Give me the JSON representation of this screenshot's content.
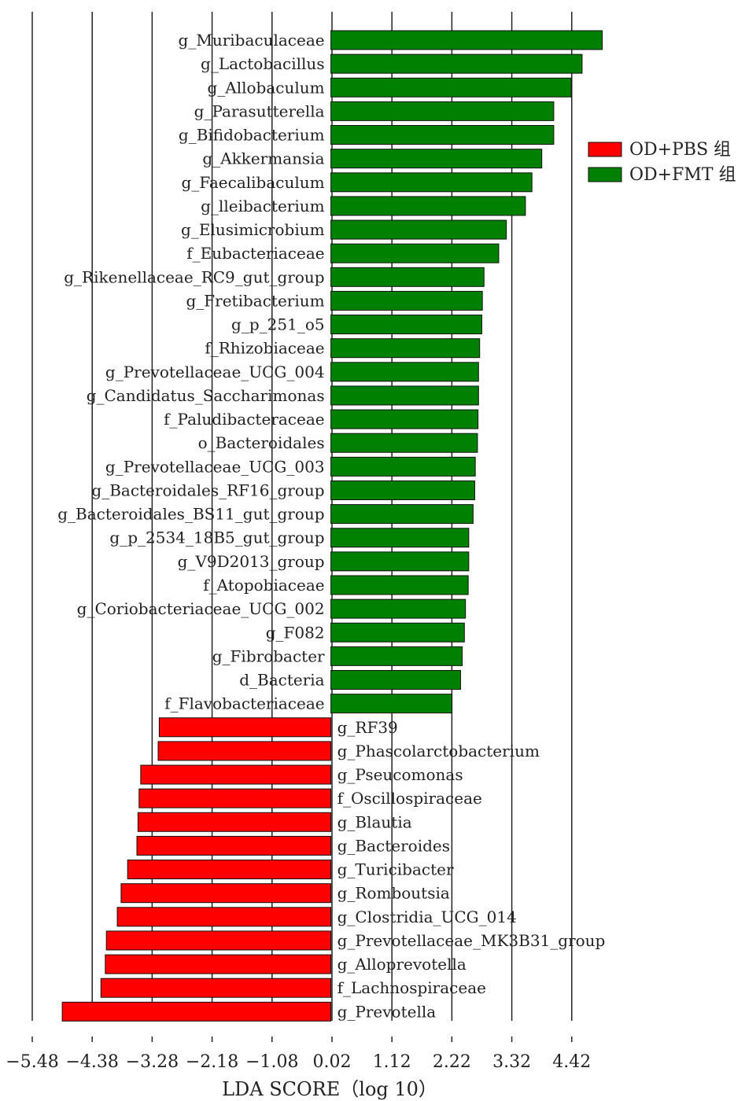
{
  "chart_data": {
    "type": "bar",
    "orientation": "horizontal",
    "xlabel": "LDA SCORE（log 10）",
    "xlim": [
      -5.48,
      5.3
    ],
    "xticks": [
      "−5.48",
      "−4.38",
      "−3.28",
      "−2.18",
      "−1.08",
      "0.02",
      "1.12",
      "2.22",
      "3.32",
      "4.42"
    ],
    "grid": "vertical lines at ticks",
    "legend": {
      "placement": "right",
      "entries": [
        {
          "label": "OD+PBS 组",
          "color": "#ff0000"
        },
        {
          "label": "OD+FMT 组",
          "color": "#008000"
        }
      ]
    },
    "series": [
      {
        "name": "OD+FMT 组",
        "color": "#008000",
        "categories": [
          "g_Muribaculaceae",
          "g_Lactobacillus",
          "g_Allobaculum",
          "g_Parasutterella",
          "g_Bifidobacterium",
          "g_Akkermansia",
          "g_Faecalibaculum",
          "g_lleibacterium",
          "g_Elusimicrobium",
          "f_Eubacteriaceae",
          "g_Rikenellaceae_RC9_gut_group",
          "g_Fretibacterium",
          "g_p_251_o5",
          "f_Rhizobiaceae",
          "g_Prevotellaceae_UCG_004",
          "g_Candidatus_Saccharimonas",
          "f_Paludibacteraceae",
          "o_Bacteroidales",
          "g_Prevotellaceae_UCG_003",
          "g_Bacteroidales_RF16_group",
          "g_Bacteroidales_BS11_gut_group",
          "g_p_2534_18B5_gut_group",
          "g_V9D2013_group",
          "f_Atopobiaceae",
          "g_Coriobacteriaceae_UCG_002",
          "g_F082",
          "g_Fibrobacter",
          "d_Bacteria",
          "f_Flavobacteriaceae"
        ],
        "values": [
          4.98,
          4.61,
          4.41,
          4.09,
          4.09,
          3.87,
          3.69,
          3.57,
          3.22,
          3.08,
          2.81,
          2.78,
          2.77,
          2.73,
          2.71,
          2.71,
          2.7,
          2.69,
          2.65,
          2.64,
          2.61,
          2.53,
          2.53,
          2.52,
          2.47,
          2.45,
          2.41,
          2.38,
          2.22
        ]
      },
      {
        "name": "OD+PBS 组",
        "color": "#ff0000",
        "categories": [
          "g_RF39",
          "g_Phascolarctobacterium",
          "g_Pseucomonas",
          "f_Oscillospiraceae",
          "g_Blautia",
          "g_Bacteroides",
          "g_Turicibacter",
          "g_Romboutsia",
          "g_Clostridia_UCG_014",
          "g_Prevotellaceae_MK3B31_group",
          "g_Alloprevotella",
          "f_Lachnospiraceae",
          "g_Prevotella"
        ],
        "values": [
          -3.15,
          -3.17,
          -3.49,
          -3.52,
          -3.54,
          -3.56,
          -3.73,
          -3.85,
          -3.92,
          -4.12,
          -4.14,
          -4.22,
          -4.93
        ]
      }
    ]
  }
}
